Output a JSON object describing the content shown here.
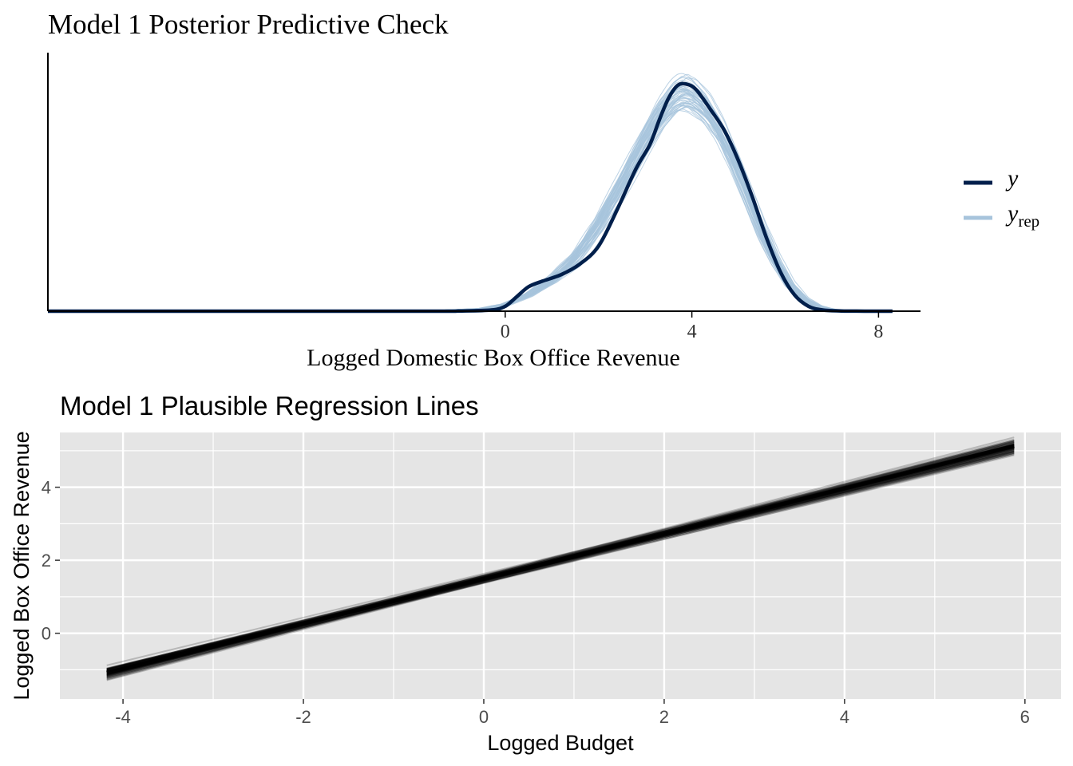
{
  "colors": {
    "y": "#011f4b",
    "yrep": "#a7c4dc",
    "panel_bg": "#e5e5e5",
    "grid": "#ffffff",
    "reg_line": "#000000"
  },
  "chart_data": [
    {
      "type": "line",
      "title": "Model 1 Posterior Predictive Check",
      "xlabel": "Logged Domestic Box Office Revenue",
      "ylabel": "",
      "xlim": [
        -9.8,
        8.9
      ],
      "ylim": [
        0,
        0.318
      ],
      "xticks": [
        0,
        4,
        8
      ],
      "x_tick_labels": [
        "0",
        "4",
        "8"
      ],
      "grid": false,
      "legend_position": "right",
      "legend": [
        {
          "key": "y",
          "label": "y",
          "sub": ""
        },
        {
          "key": "yrep",
          "label": "y",
          "sub": "rep"
        }
      ],
      "series": [
        {
          "name": "y",
          "x": [
            -9.8,
            -2.0,
            -1.0,
            -0.3,
            0.0,
            0.25,
            0.5,
            0.8,
            1.2,
            1.6,
            2.0,
            2.4,
            2.8,
            3.1,
            3.3,
            3.5,
            3.7,
            3.9,
            4.1,
            4.4,
            4.7,
            5.0,
            5.3,
            5.6,
            5.9,
            6.2,
            6.5,
            6.8,
            7.2,
            7.7,
            8.3
          ],
          "values": [
            0,
            0,
            0.0002,
            0.0015,
            0.006,
            0.018,
            0.03,
            0.037,
            0.045,
            0.058,
            0.08,
            0.125,
            0.175,
            0.205,
            0.235,
            0.262,
            0.278,
            0.279,
            0.272,
            0.248,
            0.222,
            0.185,
            0.14,
            0.09,
            0.048,
            0.02,
            0.006,
            0.0015,
            0.0003,
            0,
            0
          ]
        },
        {
          "name": "yrep",
          "x": [
            -9.8,
            -3.0,
            -1.5,
            -0.5,
            0.0,
            0.5,
            1.0,
            1.5,
            2.0,
            2.5,
            3.0,
            3.3,
            3.6,
            3.8,
            4.0,
            4.3,
            4.6,
            4.9,
            5.2,
            5.5,
            5.8,
            6.1,
            6.4,
            6.7,
            7.0,
            7.4,
            8.3
          ],
          "values": [
            0,
            0.0001,
            0.0008,
            0.003,
            0.008,
            0.02,
            0.038,
            0.065,
            0.105,
            0.155,
            0.21,
            0.24,
            0.262,
            0.27,
            0.267,
            0.252,
            0.225,
            0.188,
            0.145,
            0.1,
            0.062,
            0.033,
            0.015,
            0.006,
            0.002,
            0.0004,
            0
          ]
        }
      ]
    },
    {
      "type": "line",
      "title": "Model 1 Plausible Regression Lines",
      "xlabel": "Logged Budget",
      "ylabel": "Logged Box Office Revenue",
      "xlim": [
        -4.7,
        6.4
      ],
      "ylim": [
        -1.8,
        5.5
      ],
      "xticks": [
        -4,
        -2,
        0,
        2,
        4,
        6
      ],
      "x_tick_labels": [
        "-4",
        "-2",
        "0",
        "2",
        "4",
        "6"
      ],
      "yticks": [
        0,
        2,
        4
      ],
      "y_tick_labels": [
        "0",
        "2",
        "4"
      ],
      "grid": true,
      "x_range": [
        -4.18,
        5.88
      ],
      "n_lines": 80,
      "intercept_mean": 1.5,
      "slope_mean": 0.617
    }
  ]
}
